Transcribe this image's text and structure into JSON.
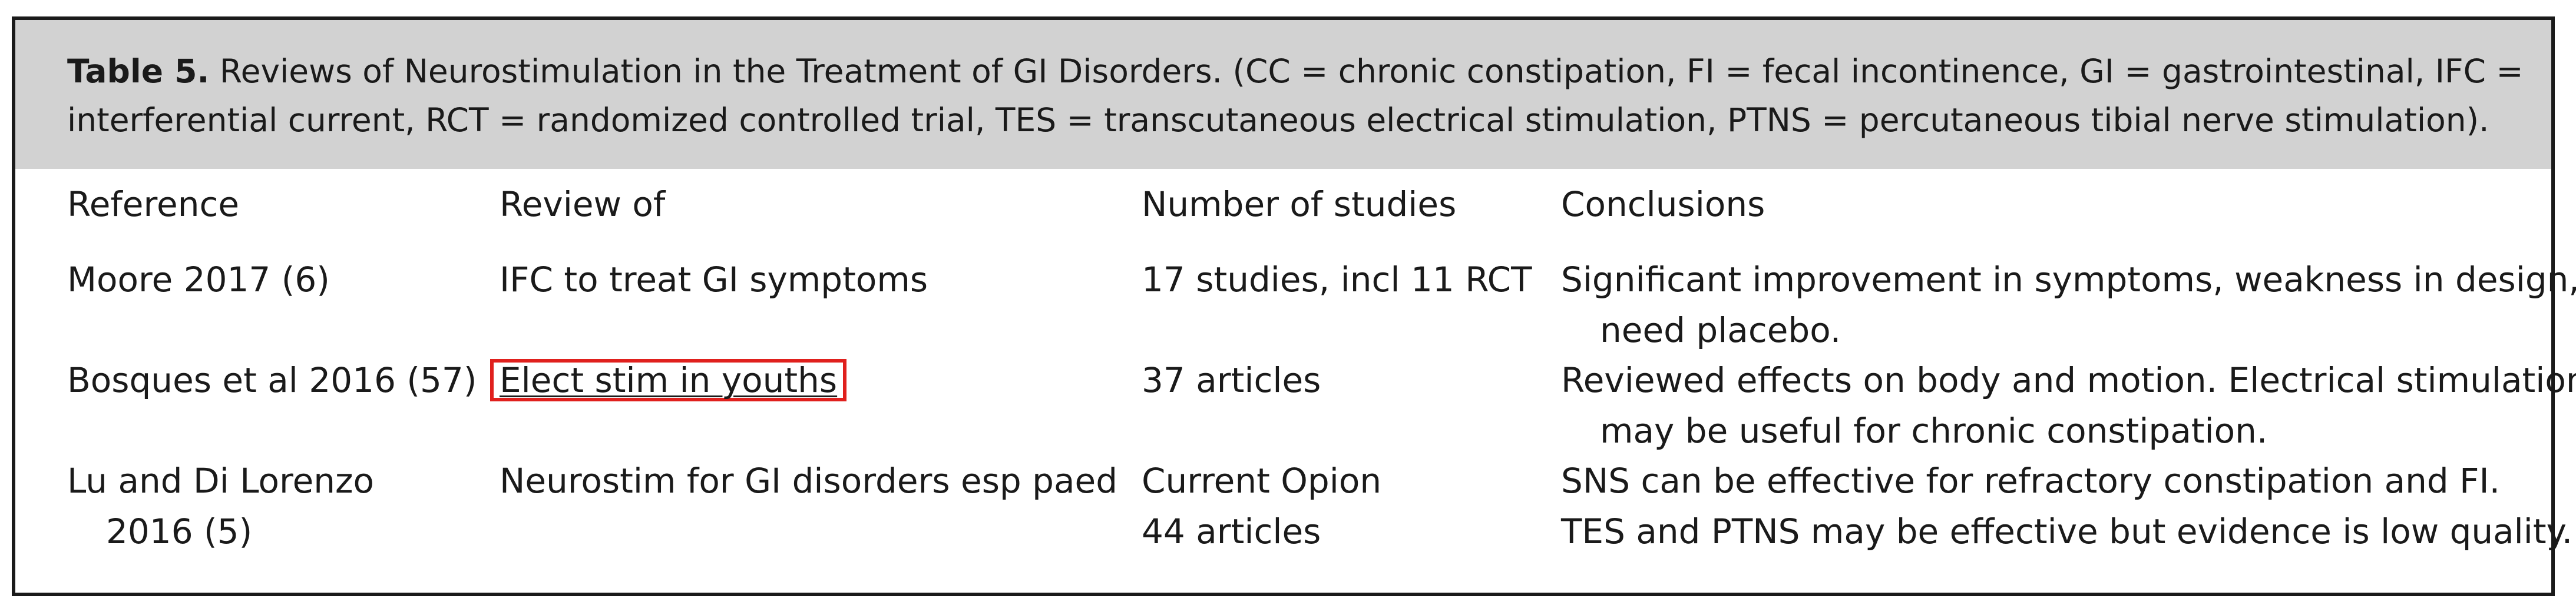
{
  "table": {
    "caption_label": "Table 5.",
    "caption_text": " Reviews of Neurostimulation in the Treatment of GI Disorders. (CC = chronic constipation, FI = fecal incontinence, GI = gastrointestinal, IFC = interferential current, RCT = randomized controlled trial, TES = transcutaneous electrical stimulation, PTNS = percutaneous tibial nerve stimulation).",
    "headers": {
      "reference": "Reference",
      "review_of": "Review of",
      "number_of_studies": "Number of studies",
      "conclusions": "Conclusions"
    },
    "rows": [
      {
        "reference": "Moore 2017 (6)",
        "review_of": "IFC to treat GI symptoms",
        "number_of_studies": "17 studies, incl 11 RCT",
        "conclusions_line1": "Significant improvement in symptoms, weakness in design,",
        "conclusions_line2": "need placebo."
      },
      {
        "reference": "Bosques et al 2016 (57)",
        "review_of": "Elect stim in youths",
        "number_of_studies": "37 articles",
        "conclusions_line1": "Reviewed effects on body and motion. Electrical stimulation",
        "conclusions_line2": "may be useful for chronic constipation."
      },
      {
        "reference_line1": "Lu and Di Lorenzo",
        "reference_line2": "2016 (5)",
        "review_of": "Neurostim for GI disorders esp paed",
        "number_of_studies_line1": "Current Opion",
        "number_of_studies_line2": "44 articles",
        "conclusions_line1": "SNS can be effective for refractory constipation and FI.",
        "conclusions_line2": "TES and PTNS may be effective but evidence is low quality."
      }
    ]
  },
  "colors": {
    "caption_background": "#d2d2d2",
    "frame_border": "#1a1a1a",
    "highlight_box": "#e0201d"
  }
}
